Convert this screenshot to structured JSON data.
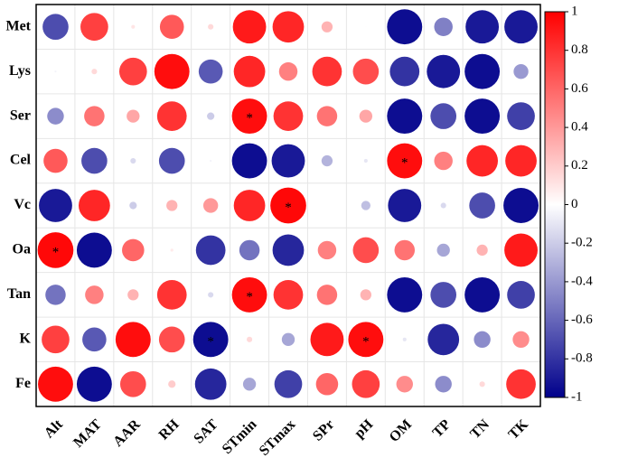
{
  "chart_data": {
    "type": "correlation",
    "categories": [
      "Alt",
      "MAT",
      "AAR",
      "RH",
      "SAT",
      "STmin",
      "STmax",
      "SPr",
      "pH",
      "OM",
      "TP",
      "TN",
      "TK"
    ],
    "series": [
      {
        "name": "Met",
        "values": [
          -0.7,
          0.75,
          0.1,
          0.65,
          0.15,
          0.9,
          0.85,
          0.3,
          0.02,
          -0.95,
          -0.5,
          -0.9,
          -0.9
        ]
      },
      {
        "name": "Lys",
        "values": [
          -0.05,
          0.15,
          0.75,
          0.95,
          -0.65,
          0.85,
          0.5,
          0.8,
          0.7,
          -0.8,
          -0.9,
          -0.95,
          -0.4
        ]
      },
      {
        "name": "Ser",
        "values": [
          -0.45,
          0.55,
          0.35,
          0.8,
          -0.2,
          0.95,
          0.8,
          0.55,
          0.35,
          -0.95,
          -0.7,
          -0.95,
          -0.75
        ]
      },
      {
        "name": "Cel",
        "values": [
          0.65,
          -0.7,
          -0.15,
          -0.7,
          -0.05,
          -0.95,
          -0.9,
          -0.3,
          -0.1,
          0.95,
          0.5,
          0.85,
          0.85
        ]
      },
      {
        "name": "Vc",
        "values": [
          -0.9,
          0.85,
          -0.2,
          0.3,
          0.4,
          0.85,
          0.97,
          0,
          -0.25,
          -0.9,
          -0.15,
          -0.7,
          -0.95
        ]
      },
      {
        "name": "Oa",
        "values": [
          0.97,
          -0.95,
          0.6,
          0.08,
          -0.8,
          -0.55,
          -0.85,
          0.5,
          0.7,
          0.55,
          -0.35,
          0.3,
          0.9
        ]
      },
      {
        "name": "Tan",
        "values": [
          -0.55,
          0.5,
          0.3,
          0.8,
          -0.15,
          0.95,
          0.8,
          0.55,
          0.3,
          -0.95,
          -0.7,
          -0.95,
          -0.75
        ]
      },
      {
        "name": "K",
        "values": [
          0.75,
          -0.65,
          0.95,
          0.7,
          -0.95,
          0.15,
          -0.35,
          0.9,
          0.95,
          -0.1,
          -0.85,
          -0.45,
          0.45
        ]
      },
      {
        "name": "Fe",
        "values": [
          0.95,
          -0.95,
          0.7,
          0.2,
          -0.85,
          -0.35,
          -0.75,
          0.6,
          0.75,
          0.45,
          -0.45,
          0.15,
          0.8
        ]
      }
    ],
    "annotations": [
      {
        "row": "Ser",
        "column": "STmin",
        "text": "*"
      },
      {
        "row": "Cel",
        "column": "OM",
        "text": "*"
      },
      {
        "row": "Vc",
        "column": "STmax",
        "text": "*"
      },
      {
        "row": "Oa",
        "column": "Alt",
        "text": "*"
      },
      {
        "row": "Tan",
        "column": "STmin",
        "text": "*"
      },
      {
        "row": "K",
        "column": "SAT",
        "text": "*"
      },
      {
        "row": "K",
        "column": "pH",
        "text": "*"
      }
    ],
    "colormap": [
      "#00008b",
      "#ffffff",
      "#ff0000"
    ],
    "clim": [
      -1,
      1
    ],
    "cticks": [
      1,
      0.8,
      0.6,
      0.4,
      0.2,
      0,
      -0.2,
      -0.4,
      -0.6,
      -0.8,
      -1
    ]
  }
}
